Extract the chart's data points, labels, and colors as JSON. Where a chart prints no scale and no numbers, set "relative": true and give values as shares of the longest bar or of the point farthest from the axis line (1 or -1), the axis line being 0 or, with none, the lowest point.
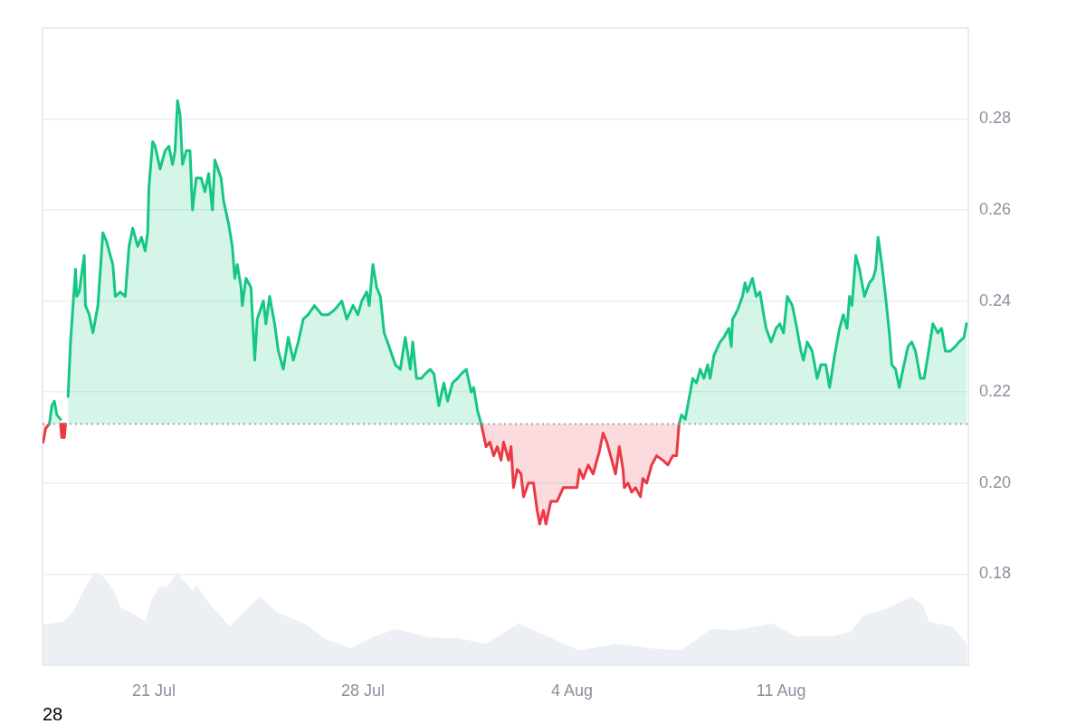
{
  "chart_data": [
    {
      "type": "area",
      "xlim": [
        "--07-17T06:30",
        "--08-17T06:30"
      ],
      "ylim": [
        0.16,
        0.3
      ],
      "yticks": [
        0.18,
        {
          "value": 0.2,
          "label": "0.20"
        },
        0.22,
        0.24,
        0.26,
        0.28
      ],
      "tick_labels": "y",
      "grid": "y",
      "ref_lines": [
        {
          "axis": "y",
          "value": 0.213,
          "color": "#8c9099",
          "line_style": "dotted"
        }
      ],
      "series": [
        {
          "color": "#16c784",
          "x": [
            "--07-17T12:00",
            "--07-17T14:00",
            "--07-17T16:00",
            "--07-17T18:00",
            "--07-17T21:00",
            "--07-17T23:00",
            "--07-18T03:00",
            "--07-18T05:00",
            "--07-18T07:00",
            "--07-18T09:00",
            "--07-18T10:00",
            "--07-18T12:00",
            "--07-18T16:00",
            "--07-18T17:00",
            "--07-18T20:00",
            "--07-18T23:00",
            "--07-19T03:00",
            "--07-19T07:00",
            "--07-19T10:00",
            "--07-19T15:00",
            "--07-19T17:00",
            "--07-19T21:00",
            "--07-20T01:00",
            "--07-20T04:00",
            "--07-20T07:00",
            "--07-20T11:00",
            "--07-20T14:00",
            "--07-20T17:00",
            "--07-20T19:00",
            "--07-20T20:00",
            "--07-20T23:00",
            "--07-21T01:00",
            "--07-21T05:00",
            "--07-21T09:00",
            "--07-21T12:00",
            "--07-21T15:00",
            "--07-21T17:00",
            "--07-21T19:00",
            "--07-21T21:00",
            "--07-21T23:00",
            "--07-22T02:00",
            "--07-22T05:00",
            "--07-22T07:00",
            "--07-22T10:00",
            "--07-22T14:00",
            "--07-22T17:00",
            "--07-22T20:00",
            "--07-22T23:00",
            "--07-23T01:00",
            "--07-23T06:00",
            "--07-23T08:00",
            "--07-23T12:00",
            "--07-23T15:00",
            "--07-23T17:00",
            "--07-23T19:00",
            "--07-23T22:00",
            "--07-23T23:00",
            "--07-24T02:00",
            "--07-24T06:00",
            "--07-24T09:00",
            "--07-24T11:00",
            "--07-24T16:00",
            "--07-24T18:00",
            "--07-24T21:00",
            "--07-25T01:00",
            "--07-25T04:00",
            "--07-25T08:00",
            "--07-25T12:00",
            "--07-25T16:00",
            "--07-25T20:00",
            "--07-26T00:00",
            "--07-26T04:00",
            "--07-26T09:00",
            "--07-26T15:00",
            "--07-26T20:00",
            "--07-27T01:00",
            "--07-27T07:00",
            "--07-27T11:00",
            "--07-27T16:00",
            "--07-27T20:00",
            "--07-27T23:00",
            "--07-28T03:00",
            "--07-28T05:00",
            "--07-28T08:00",
            "--07-28T11:00",
            "--07-28T14:00",
            "--07-28T17:00",
            "--07-28T21:00",
            "--07-29T02:00",
            "--07-29T06:00",
            "--07-29T10:00",
            "--07-29T14:00",
            "--07-29T16:00",
            "--07-29T19:00",
            "--07-29T23:00",
            "--07-30T02:00",
            "--07-30T06:00",
            "--07-30T09:00",
            "--07-30T13:00",
            "--07-30T17:00",
            "--07-30T20:00",
            "--07-31T00:00",
            "--07-31T04:00",
            "--07-31T07:00",
            "--07-31T11:00",
            "--07-31T15:00",
            "--07-31T17:00",
            "--07-31T20:00",
            "--07-31T23:00",
            "--08-03T00:00",
            "--08-07T14:00",
            "--08-07T16:00",
            "--08-07T19:00",
            "--08-07T21:00",
            "--08-08T01:00",
            "--08-08T04:00",
            "--08-08T07:00",
            "--08-08T10:00",
            "--08-08T13:00",
            "--08-08T15:00",
            "--08-08T18:00",
            "--08-08T23:00",
            "--08-09T02:00",
            "--08-09T06:00",
            "--08-09T08:00",
            "--08-09T09:00",
            "--08-09T13:00",
            "--08-09T17:00",
            "--08-09T19:00",
            "--08-09T21:00",
            "--08-10T01:00",
            "--08-10T04:00",
            "--08-10T07:00",
            "--08-10T10:00",
            "--08-10T12:00",
            "--08-10T16:00",
            "--08-10T20:00",
            "--08-10T23:00",
            "--08-11T02:00",
            "--08-11T05:00",
            "--08-11T09:00",
            "--08-11T12:00",
            "--08-11T16:00",
            "--08-11T18:00",
            "--08-11T21:00",
            "--08-12T01:00",
            "--08-12T05:00",
            "--08-12T08:00",
            "--08-12T12:00",
            "--08-12T15:00",
            "--08-12T19:00",
            "--08-12T23:00",
            "--08-13T02:00",
            "--08-13T05:00",
            "--08-13T07:00",
            "--08-13T09:00",
            "--08-13T12:00",
            "--08-13T15:00",
            "--08-13T19:00",
            "--08-13T23:00",
            "--08-14T02:00",
            "--08-14T04:00",
            "--08-14T06:00",
            "--08-14T09:00",
            "--08-14T12:00",
            "--08-14T15:00",
            "--08-14T17:00",
            "--08-14T20:00",
            "--08-14T23:00",
            "--08-15T02:00",
            "--08-15T06:00",
            "--08-15T09:00",
            "--08-15T12:00",
            "--08-15T16:00",
            "--08-15T19:00",
            "--08-15T22:00",
            "--08-16T02:00",
            "--08-16T06:00",
            "--08-16T09:00",
            "--08-16T12:00",
            "--08-16T16:00",
            "--08-16T20:00",
            "--08-16T23:00",
            "--08-17T03:00",
            "--08-17T05:00"
          ],
          "values": [
            0.213,
            0.217,
            0.218,
            0.215,
            0.214,
            null,
            0.219,
            0.231,
            0.239,
            0.247,
            0.241,
            0.242,
            0.25,
            0.239,
            0.237,
            0.233,
            0.239,
            0.255,
            0.253,
            0.248,
            0.241,
            0.242,
            0.241,
            0.252,
            0.256,
            0.252,
            0.254,
            0.251,
            0.255,
            0.265,
            0.275,
            0.274,
            0.269,
            0.273,
            0.274,
            0.27,
            0.273,
            0.284,
            0.281,
            0.27,
            0.273,
            0.273,
            0.26,
            0.267,
            0.267,
            0.264,
            0.268,
            0.26,
            0.271,
            0.267,
            0.262,
            0.257,
            0.252,
            0.245,
            0.248,
            0.243,
            0.239,
            0.245,
            0.243,
            0.227,
            0.236,
            0.24,
            0.235,
            0.241,
            0.235,
            0.229,
            0.225,
            0.232,
            0.227,
            0.231,
            0.236,
            0.237,
            0.239,
            0.237,
            0.237,
            0.238,
            0.24,
            0.236,
            0.239,
            0.237,
            0.24,
            0.242,
            0.239,
            0.248,
            0.243,
            0.241,
            0.233,
            0.23,
            0.226,
            0.225,
            0.232,
            0.225,
            0.231,
            0.223,
            0.223,
            0.224,
            0.225,
            0.224,
            0.217,
            0.222,
            0.218,
            0.222,
            0.223,
            0.224,
            0.225,
            0.22,
            0.221,
            0.216,
            0.213,
            null,
            0.213,
            0.215,
            0.214,
            0.217,
            0.223,
            0.222,
            0.225,
            0.223,
            0.226,
            0.223,
            0.228,
            0.231,
            0.232,
            0.234,
            0.23,
            0.236,
            0.238,
            0.241,
            0.244,
            0.242,
            0.245,
            0.241,
            0.242,
            0.237,
            0.234,
            0.231,
            0.234,
            0.235,
            0.233,
            0.241,
            0.239,
            0.235,
            0.229,
            0.227,
            0.231,
            0.229,
            0.223,
            0.226,
            0.226,
            0.221,
            0.228,
            0.234,
            0.237,
            0.234,
            0.241,
            0.239,
            0.25,
            0.247,
            0.241,
            0.244,
            0.245,
            0.247,
            0.254,
            0.248,
            0.241,
            0.233,
            0.226,
            0.225,
            0.221,
            0.225,
            0.23,
            0.231,
            0.229,
            0.223,
            0.223,
            0.228,
            0.235,
            0.233,
            0.234,
            0.229,
            0.229,
            0.23,
            0.231,
            0.232,
            0.235
          ]
        },
        {
          "color": "#ea3943",
          "x": [
            "--07-17T07:00",
            "--07-17T09:00",
            "--07-17T12:00",
            "--07-17T15:00",
            "--07-17T21:00",
            "--07-17T22:00",
            "--07-17T23:00",
            "--07-18T00:00",
            "--07-18T01:00",
            "--07-25T00:00",
            "--07-31T23:00",
            "--08-01T03:00",
            "--08-01T06:00",
            "--08-01T09:00",
            "--08-01T12:00",
            "--08-01T15:00",
            "--08-01T17:00",
            "--08-01T21:00",
            "--08-01T23:00",
            "--08-02T01:00",
            "--08-02T04:00",
            "--08-02T07:00",
            "--08-02T09:00",
            "--08-02T13:00",
            "--08-02T17:00",
            "--08-02T20:00",
            "--08-02T22:00",
            "--08-03T01:00",
            "--08-03T03:00",
            "--08-03T07:00",
            "--08-03T12:00",
            "--08-03T17:00",
            "--08-03T23:00",
            "--08-04T04:00",
            "--08-04T06:00",
            "--08-04T09:00",
            "--08-04T13:00",
            "--08-04T17:00",
            "--08-04T19:00",
            "--08-04T22:00",
            "--08-05T01:00",
            "--08-05T04:00",
            "--08-05T07:00",
            "--08-05T11:00",
            "--08-05T14:00",
            "--08-05T17:00",
            "--08-05T18:00",
            "--08-05T21:00",
            "--08-06T00:00",
            "--08-06T03:00",
            "--08-06T07:00",
            "--08-06T09:00",
            "--08-06T12:00",
            "--08-06T16:00",
            "--08-06T20:00",
            "--08-07T01:00",
            "--08-07T05:00",
            "--08-07T09:00",
            "--08-07T12:00",
            "--08-07T14:00"
          ],
          "values": [
            0.209,
            0.212,
            0.213,
            null,
            0.213,
            0.21,
            0.213,
            0.21,
            0.213,
            null,
            0.213,
            0.208,
            0.209,
            0.206,
            0.208,
            0.205,
            0.209,
            0.205,
            0.208,
            0.199,
            0.203,
            0.202,
            0.197,
            0.2,
            0.2,
            0.194,
            0.191,
            0.194,
            0.191,
            0.196,
            0.196,
            0.199,
            0.199,
            0.199,
            0.203,
            0.201,
            0.204,
            0.202,
            0.204,
            0.207,
            0.211,
            0.209,
            0.206,
            0.202,
            0.208,
            0.203,
            0.199,
            0.2,
            0.198,
            0.199,
            0.197,
            0.201,
            0.2,
            0.204,
            0.206,
            0.205,
            0.204,
            0.206,
            0.206,
            0.213
          ]
        }
      ]
    },
    {
      "type": "area",
      "relative": true,
      "xlim": [
        "--07-17T06:30",
        "--08-17T06:30"
      ],
      "xticks": [
        {
          "value": "--07-21",
          "label": "21 Jul"
        },
        {
          "value": "--07-28",
          "label": "28 Jul"
        },
        {
          "value": "--08-04",
          "label": "4 Aug"
        },
        {
          "value": "--08-11",
          "label": "11 Aug"
        }
      ],
      "tick_labels": "x",
      "annotations": [
        "28"
      ],
      "series": [
        {
          "color": "#eceff3",
          "x": [
            "--07-17T07:00",
            "--07-17T23:00",
            "--07-18T07:00",
            "--07-18T14:00",
            "--07-18T21:00",
            "--07-19T01:00",
            "--07-19T08:00",
            "--07-19T17:00",
            "--07-19T21:00",
            "--07-20T05:00",
            "--07-20T17:00",
            "--07-20T22:00",
            "--07-21T05:00",
            "--07-21T10:00",
            "--07-21T19:00",
            "--07-22T07:00",
            "--07-22T10:00",
            "--07-22T22:00",
            "--07-23T13:00",
            "--07-24T03:00",
            "--07-24T13:00",
            "--07-25T03:00",
            "--07-26T01:00",
            "--07-26T18:00",
            "--07-27T14:00",
            "--07-28T09:00",
            "--07-29T03:00",
            "--07-30T05:00",
            "--07-31T05:00",
            "--08-01T03:00",
            "--08-02T05:00",
            "--08-03T01:00",
            "--08-04T06:00",
            "--08-05T11:00",
            "--08-06T16:00",
            "--08-07T16:00",
            "--08-08T07:00",
            "--08-08T16:00",
            "--08-09T12:00",
            "--08-10T17:00",
            "--08-11T12:00",
            "--08-12T17:00",
            "--08-13T08:00",
            "--08-13T18:00",
            "--08-14T13:00",
            "--08-15T09:00",
            "--08-15T18:00",
            "--08-15T23:00",
            "--08-16T18:00",
            "--08-17T05:00"
          ],
          "values": [
            0.44,
            0.47,
            0.57,
            0.77,
            0.93,
            1,
            0.95,
            0.77,
            0.62,
            0.57,
            0.47,
            0.7,
            0.86,
            0.84,
            0.99,
            0.8,
            0.87,
            0.64,
            0.42,
            0.61,
            0.74,
            0.57,
            0.45,
            0.28,
            0.18,
            0.31,
            0.39,
            0.3,
            0.29,
            0.23,
            0.45,
            0.33,
            0.16,
            0.23,
            0.18,
            0.16,
            0.31,
            0.39,
            0.38,
            0.45,
            0.31,
            0.31,
            0.36,
            0.54,
            0.61,
            0.74,
            0.64,
            0.47,
            0.41,
            0.24
          ]
        }
      ]
    }
  ]
}
